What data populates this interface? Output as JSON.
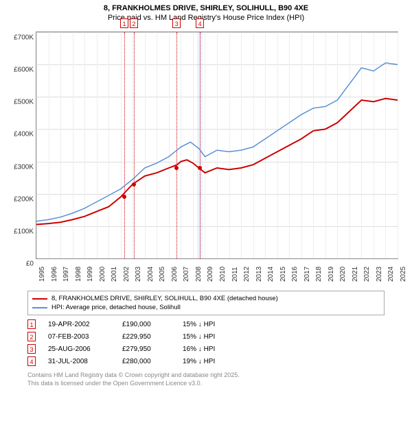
{
  "title": "8, FRANKHOLMES DRIVE, SHIRLEY, SOLIHULL, B90 4XE",
  "subtitle": "Price paid vs. HM Land Registry's House Price Index (HPI)",
  "chart": {
    "type": "line",
    "y": {
      "min": 0,
      "max": 700000,
      "step": 100000,
      "ticks": [
        "£0",
        "£100K",
        "£200K",
        "£300K",
        "£400K",
        "£500K",
        "£600K",
        "£700K"
      ]
    },
    "x": {
      "min": 1995,
      "max": 2025,
      "step": 1,
      "ticks": [
        "1995",
        "1996",
        "1997",
        "1998",
        "1999",
        "2000",
        "2001",
        "2002",
        "2003",
        "2004",
        "2005",
        "2006",
        "2007",
        "2008",
        "2009",
        "2010",
        "2011",
        "2012",
        "2013",
        "2014",
        "2015",
        "2016",
        "2017",
        "2018",
        "2019",
        "2020",
        "2021",
        "2022",
        "2023",
        "2024",
        "2025"
      ]
    },
    "series": [
      {
        "name": "8, FRANKHOLMES DRIVE, SHIRLEY, SOLIHULL, B90 4XE (detached house)",
        "color": "#cc0000",
        "width": 2,
        "points": [
          [
            1995,
            105000
          ],
          [
            1996,
            108000
          ],
          [
            1997,
            112000
          ],
          [
            1998,
            120000
          ],
          [
            1999,
            130000
          ],
          [
            2000,
            145000
          ],
          [
            2001,
            160000
          ],
          [
            2002,
            190000
          ],
          [
            2002.5,
            210000
          ],
          [
            2003,
            229950
          ],
          [
            2004,
            255000
          ],
          [
            2005,
            265000
          ],
          [
            2006,
            279950
          ],
          [
            2006.7,
            290000
          ],
          [
            2007,
            300000
          ],
          [
            2007.5,
            305000
          ],
          [
            2008,
            295000
          ],
          [
            2008.5,
            280000
          ],
          [
            2009,
            265000
          ],
          [
            2010,
            280000
          ],
          [
            2011,
            275000
          ],
          [
            2012,
            280000
          ],
          [
            2013,
            290000
          ],
          [
            2014,
            310000
          ],
          [
            2015,
            330000
          ],
          [
            2016,
            350000
          ],
          [
            2017,
            370000
          ],
          [
            2018,
            395000
          ],
          [
            2019,
            400000
          ],
          [
            2020,
            420000
          ],
          [
            2021,
            455000
          ],
          [
            2022,
            490000
          ],
          [
            2023,
            485000
          ],
          [
            2024,
            495000
          ],
          [
            2025,
            490000
          ]
        ]
      },
      {
        "name": "HPI: Average price, detached house, Solihull",
        "color": "#5b8fd6",
        "width": 1.5,
        "points": [
          [
            1995,
            115000
          ],
          [
            1996,
            120000
          ],
          [
            1997,
            128000
          ],
          [
            1998,
            140000
          ],
          [
            1999,
            155000
          ],
          [
            2000,
            175000
          ],
          [
            2001,
            195000
          ],
          [
            2002,
            215000
          ],
          [
            2003,
            245000
          ],
          [
            2004,
            280000
          ],
          [
            2005,
            295000
          ],
          [
            2006,
            315000
          ],
          [
            2007,
            345000
          ],
          [
            2007.8,
            360000
          ],
          [
            2008.5,
            340000
          ],
          [
            2009,
            315000
          ],
          [
            2010,
            335000
          ],
          [
            2011,
            330000
          ],
          [
            2012,
            335000
          ],
          [
            2013,
            345000
          ],
          [
            2014,
            370000
          ],
          [
            2015,
            395000
          ],
          [
            2016,
            420000
          ],
          [
            2017,
            445000
          ],
          [
            2018,
            465000
          ],
          [
            2019,
            470000
          ],
          [
            2020,
            490000
          ],
          [
            2021,
            540000
          ],
          [
            2022,
            590000
          ],
          [
            2023,
            580000
          ],
          [
            2024,
            605000
          ],
          [
            2025,
            600000
          ]
        ]
      }
    ],
    "markers": [
      {
        "n": "1",
        "x": 2002.3
      },
      {
        "n": "2",
        "x": 2003.1
      },
      {
        "n": "3",
        "x": 2006.65
      },
      {
        "n": "4",
        "x": 2008.58,
        "band_width": 0.5
      }
    ],
    "sale_points": [
      {
        "x": 2002.3,
        "y": 190000,
        "color": "#cc0000"
      },
      {
        "x": 2003.1,
        "y": 229950,
        "color": "#cc0000"
      },
      {
        "x": 2006.65,
        "y": 279950,
        "color": "#cc0000"
      },
      {
        "x": 2008.58,
        "y": 280000,
        "color": "#cc0000"
      }
    ],
    "background_color": "#ffffff",
    "grid_color": "#dddddd"
  },
  "legend": [
    {
      "color": "#cc0000",
      "label": "8, FRANKHOLMES DRIVE, SHIRLEY, SOLIHULL, B90 4XE (detached house)"
    },
    {
      "color": "#5b8fd6",
      "label": "HPI: Average price, detached house, Solihull"
    }
  ],
  "transactions": [
    {
      "n": "1",
      "date": "19-APR-2002",
      "price": "£190,000",
      "diff": "15% ↓ HPI"
    },
    {
      "n": "2",
      "date": "07-FEB-2003",
      "price": "£229,950",
      "diff": "15% ↓ HPI"
    },
    {
      "n": "3",
      "date": "25-AUG-2006",
      "price": "£279,950",
      "diff": "16% ↓ HPI"
    },
    {
      "n": "4",
      "date": "31-JUL-2008",
      "price": "£280,000",
      "diff": "19% ↓ HPI"
    }
  ],
  "footer1": "Contains HM Land Registry data © Crown copyright and database right 2025.",
  "footer2": "This data is licensed under the Open Government Licence v3.0."
}
